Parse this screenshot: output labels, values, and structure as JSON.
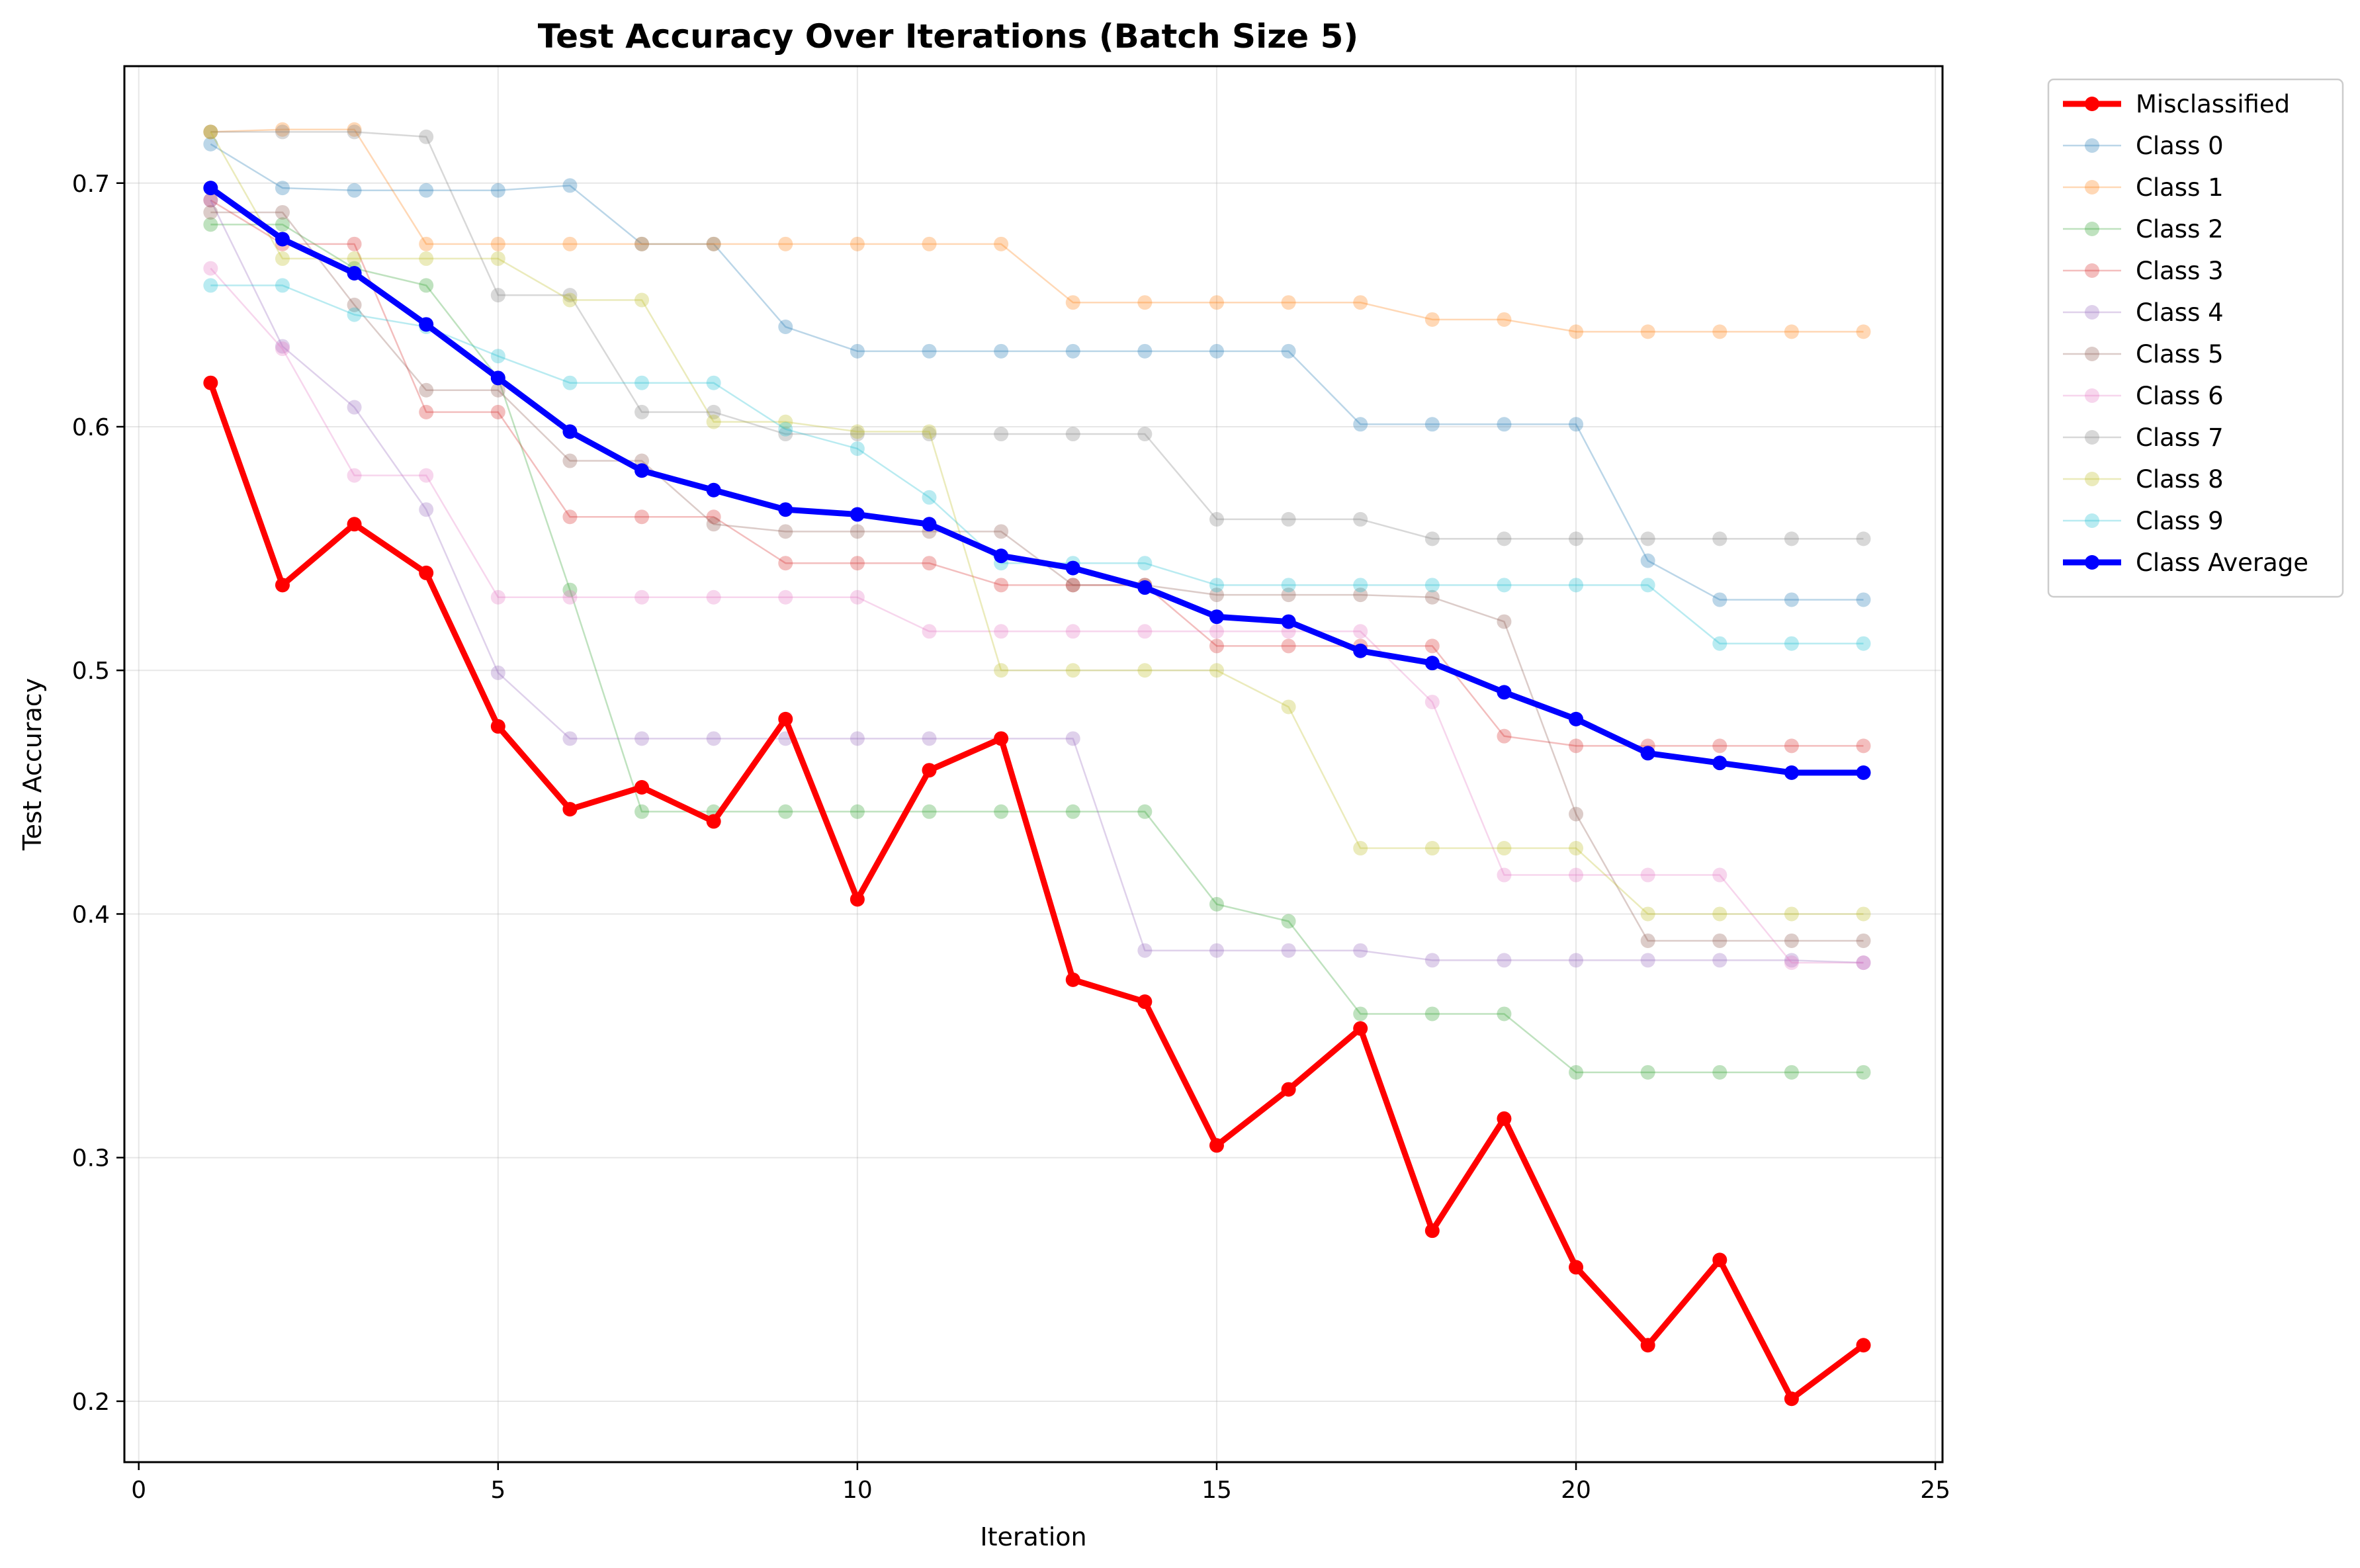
{
  "chart_data": {
    "type": "line",
    "title": "Test Accuracy Over Iterations (Batch Size 5)",
    "xlabel": "Iteration",
    "ylabel": "Test Accuracy",
    "xlim": [
      -0.2,
      25.1
    ],
    "ylim": [
      0.175,
      0.748
    ],
    "xticks": [
      0,
      5,
      10,
      15,
      20,
      25
    ],
    "xtick_labels": [
      "0",
      "5",
      "10",
      "15",
      "20",
      "25"
    ],
    "yticks": [
      0.2,
      0.3,
      0.4,
      0.5,
      0.6,
      0.7
    ],
    "ytick_labels": [
      "0.2",
      "0.3",
      "0.4",
      "0.5",
      "0.6",
      "0.7"
    ],
    "grid": true,
    "legend_position": "outside-top-right",
    "x": [
      1,
      2,
      3,
      4,
      5,
      6,
      7,
      8,
      9,
      10,
      11,
      12,
      13,
      14,
      15,
      16,
      17,
      18,
      19,
      20,
      21,
      22,
      23,
      24
    ],
    "series": [
      {
        "name": "Misclassified",
        "color": "#ff0000",
        "emphasis": true,
        "values": [
          0.618,
          0.535,
          0.56,
          0.54,
          0.477,
          0.443,
          0.452,
          0.438,
          0.48,
          0.406,
          0.459,
          0.472,
          0.373,
          0.364,
          0.305,
          0.328,
          0.353,
          0.27,
          0.316,
          0.255,
          0.223,
          0.258,
          0.201,
          0.223
        ]
      },
      {
        "name": "Class 0",
        "color": "#1f77b4",
        "emphasis": false,
        "values": [
          0.716,
          0.698,
          0.697,
          0.697,
          0.697,
          0.699,
          0.675,
          0.675,
          0.641,
          0.631,
          0.631,
          0.631,
          0.631,
          0.631,
          0.631,
          0.631,
          0.601,
          0.601,
          0.601,
          0.601,
          0.545,
          0.529,
          0.529,
          0.529
        ]
      },
      {
        "name": "Class 1",
        "color": "#ff7f0e",
        "emphasis": false,
        "values": [
          0.721,
          0.722,
          0.722,
          0.675,
          0.675,
          0.675,
          0.675,
          0.675,
          0.675,
          0.675,
          0.675,
          0.675,
          0.651,
          0.651,
          0.651,
          0.651,
          0.651,
          0.644,
          0.644,
          0.639,
          0.639,
          0.639,
          0.639,
          0.639
        ]
      },
      {
        "name": "Class 2",
        "color": "#2ca02c",
        "emphasis": false,
        "values": [
          0.683,
          0.683,
          0.665,
          0.658,
          0.62,
          0.533,
          0.442,
          0.442,
          0.442,
          0.442,
          0.442,
          0.442,
          0.442,
          0.442,
          0.404,
          0.397,
          0.359,
          0.359,
          0.359,
          0.335,
          0.335,
          0.335,
          0.335,
          0.335
        ]
      },
      {
        "name": "Class 3",
        "color": "#d62728",
        "emphasis": false,
        "values": [
          0.693,
          0.675,
          0.675,
          0.606,
          0.606,
          0.563,
          0.563,
          0.563,
          0.544,
          0.544,
          0.544,
          0.535,
          0.535,
          0.535,
          0.51,
          0.51,
          0.51,
          0.51,
          0.473,
          0.469,
          0.469,
          0.469,
          0.469,
          0.469
        ]
      },
      {
        "name": "Class 4",
        "color": "#9467bd",
        "emphasis": false,
        "values": [
          0.693,
          0.633,
          0.608,
          0.566,
          0.499,
          0.472,
          0.472,
          0.472,
          0.472,
          0.472,
          0.472,
          0.472,
          0.472,
          0.385,
          0.385,
          0.385,
          0.385,
          0.381,
          0.381,
          0.381,
          0.381,
          0.381,
          0.381,
          0.38
        ]
      },
      {
        "name": "Class 5",
        "color": "#8c564b",
        "emphasis": false,
        "values": [
          0.688,
          0.688,
          0.65,
          0.615,
          0.615,
          0.586,
          0.586,
          0.56,
          0.557,
          0.557,
          0.557,
          0.557,
          0.535,
          0.535,
          0.531,
          0.531,
          0.531,
          0.53,
          0.52,
          0.441,
          0.389,
          0.389,
          0.389,
          0.389
        ]
      },
      {
        "name": "Class 6",
        "color": "#e377c2",
        "emphasis": false,
        "values": [
          0.665,
          0.632,
          0.58,
          0.58,
          0.53,
          0.53,
          0.53,
          0.53,
          0.53,
          0.53,
          0.516,
          0.516,
          0.516,
          0.516,
          0.516,
          0.516,
          0.516,
          0.487,
          0.416,
          0.416,
          0.416,
          0.416,
          0.38,
          0.38
        ]
      },
      {
        "name": "Class 7",
        "color": "#7f7f7f",
        "emphasis": false,
        "values": [
          0.721,
          0.721,
          0.721,
          0.719,
          0.654,
          0.654,
          0.606,
          0.606,
          0.597,
          0.597,
          0.597,
          0.597,
          0.597,
          0.597,
          0.562,
          0.562,
          0.562,
          0.554,
          0.554,
          0.554,
          0.554,
          0.554,
          0.554,
          0.554
        ]
      },
      {
        "name": "Class 8",
        "color": "#bcbd22",
        "emphasis": false,
        "values": [
          0.721,
          0.669,
          0.669,
          0.669,
          0.669,
          0.652,
          0.652,
          0.602,
          0.602,
          0.598,
          0.598,
          0.5,
          0.5,
          0.5,
          0.5,
          0.485,
          0.427,
          0.427,
          0.427,
          0.427,
          0.4,
          0.4,
          0.4,
          0.4
        ]
      },
      {
        "name": "Class 9",
        "color": "#17becf",
        "emphasis": false,
        "values": [
          0.658,
          0.658,
          0.646,
          0.641,
          0.629,
          0.618,
          0.618,
          0.618,
          0.599,
          0.591,
          0.571,
          0.544,
          0.544,
          0.544,
          0.535,
          0.535,
          0.535,
          0.535,
          0.535,
          0.535,
          0.535,
          0.511,
          0.511,
          0.511
        ]
      },
      {
        "name": "Class Average",
        "color": "#0000ff",
        "emphasis": true,
        "values": [
          0.698,
          0.677,
          0.663,
          0.642,
          0.62,
          0.598,
          0.582,
          0.574,
          0.566,
          0.564,
          0.56,
          0.547,
          0.542,
          0.534,
          0.522,
          0.52,
          0.508,
          0.503,
          0.491,
          0.48,
          0.466,
          0.462,
          0.458,
          0.458
        ]
      }
    ],
    "draw_order": [
      "Class 0",
      "Class 1",
      "Class 2",
      "Class 3",
      "Class 4",
      "Class 5",
      "Class 6",
      "Class 7",
      "Class 8",
      "Class 9",
      "Class Average",
      "Misclassified"
    ],
    "legend_order": [
      "Misclassified",
      "Class 0",
      "Class 1",
      "Class 2",
      "Class 3",
      "Class 4",
      "Class 5",
      "Class 6",
      "Class 7",
      "Class 8",
      "Class 9",
      "Class Average"
    ]
  }
}
